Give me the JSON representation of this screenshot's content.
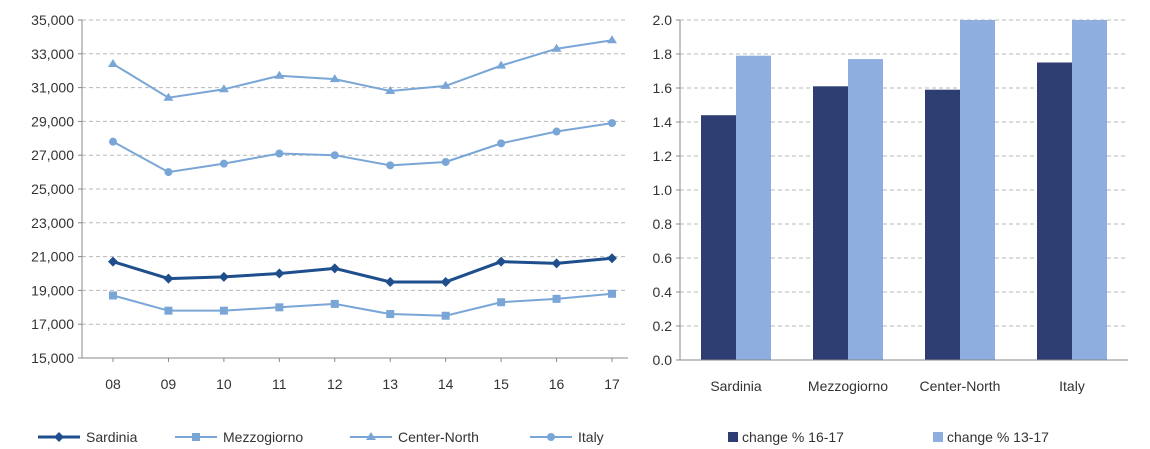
{
  "chart_data": [
    {
      "type": "line",
      "categories": [
        "08",
        "09",
        "10",
        "11",
        "12",
        "13",
        "14",
        "15",
        "16",
        "17"
      ],
      "ylim": [
        15000,
        35000
      ],
      "y_ticks": [
        "15,000",
        "17,000",
        "19,000",
        "21,000",
        "23,000",
        "25,000",
        "27,000",
        "29,000",
        "31,000",
        "33,000",
        "35,000"
      ],
      "grid": "horizontal dashed",
      "legend_position": "bottom",
      "series": [
        {
          "name": "Sardinia",
          "marker": "diamond",
          "color": "#1f4e8c",
          "emphasis": true,
          "values": [
            20700,
            19700,
            19800,
            20000,
            20300,
            19500,
            19500,
            20700,
            20600,
            20900
          ]
        },
        {
          "name": "Mezzogiorno",
          "marker": "square",
          "color": "#79a6d6",
          "values": [
            18700,
            17800,
            17800,
            18000,
            18200,
            17600,
            17500,
            18300,
            18500,
            18800
          ]
        },
        {
          "name": "Center-North",
          "marker": "triangle",
          "color": "#79a6d6",
          "values": [
            32400,
            30400,
            30900,
            31700,
            31500,
            30800,
            31100,
            32300,
            33300,
            33800
          ]
        },
        {
          "name": "Italy",
          "marker": "circle",
          "color": "#79a6d6",
          "values": [
            27800,
            26000,
            26500,
            27100,
            27000,
            26400,
            26600,
            27700,
            28400,
            28900
          ]
        }
      ]
    },
    {
      "type": "bar",
      "categories": [
        "Sardinia",
        "Mezzogiorno",
        "Center-North",
        "Italy"
      ],
      "ylim": [
        0,
        2
      ],
      "y_ticks": [
        "0.0",
        "0.2",
        "0.4",
        "0.6",
        "0.8",
        "1.0",
        "1.2",
        "1.4",
        "1.6",
        "1.8",
        "2.0"
      ],
      "grid": "horizontal dashed",
      "legend_position": "bottom",
      "series": [
        {
          "name": "change % 16-17",
          "color": "#2e3e72",
          "values": [
            1.44,
            1.61,
            1.59,
            1.75
          ]
        },
        {
          "name": "change % 13-17",
          "color": "#8eaee0",
          "values": [
            1.79,
            1.77,
            2.0,
            2.0
          ]
        }
      ]
    }
  ]
}
